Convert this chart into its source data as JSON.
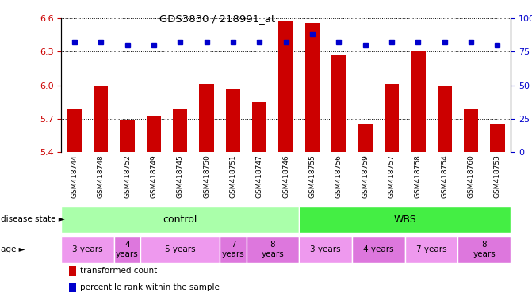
{
  "title": "GDS3830 / 218991_at",
  "samples": [
    "GSM418744",
    "GSM418748",
    "GSM418752",
    "GSM418749",
    "GSM418745",
    "GSM418750",
    "GSM418751",
    "GSM418747",
    "GSM418746",
    "GSM418755",
    "GSM418756",
    "GSM418759",
    "GSM418757",
    "GSM418758",
    "GSM418754",
    "GSM418760",
    "GSM418753"
  ],
  "transformed_counts": [
    5.78,
    6.0,
    5.69,
    5.73,
    5.78,
    6.01,
    5.96,
    5.85,
    6.58,
    6.56,
    6.27,
    5.65,
    6.01,
    6.3,
    6.0,
    5.78,
    5.65
  ],
  "percentile_ranks": [
    82,
    82,
    80,
    80,
    82,
    82,
    82,
    82,
    82,
    88,
    82,
    80,
    82,
    82,
    82,
    82,
    80
  ],
  "ylim_left": [
    5.4,
    6.6
  ],
  "ylim_right": [
    0,
    100
  ],
  "yticks_left": [
    5.4,
    5.7,
    6.0,
    6.3,
    6.6
  ],
  "yticks_right": [
    0,
    25,
    50,
    75,
    100
  ],
  "bar_color": "#cc0000",
  "dot_color": "#0000cc",
  "disease_state_control": {
    "start": 0,
    "end": 9,
    "label": "control",
    "color": "#aaffaa"
  },
  "disease_state_wbs": {
    "start": 9,
    "end": 17,
    "label": "WBS",
    "color": "#44ee44"
  },
  "age_groups": [
    {
      "label": "3 years",
      "start": 0,
      "end": 2,
      "color": "#ee99ee"
    },
    {
      "label": "4\nyears",
      "start": 2,
      "end": 3,
      "color": "#dd77dd"
    },
    {
      "label": "5 years",
      "start": 3,
      "end": 6,
      "color": "#ee99ee"
    },
    {
      "label": "7\nyears",
      "start": 6,
      "end": 7,
      "color": "#dd77dd"
    },
    {
      "label": "8\nyears",
      "start": 7,
      "end": 9,
      "color": "#dd77dd"
    },
    {
      "label": "3 years",
      "start": 9,
      "end": 11,
      "color": "#ee99ee"
    },
    {
      "label": "4 years",
      "start": 11,
      "end": 13,
      "color": "#dd77dd"
    },
    {
      "label": "7 years",
      "start": 13,
      "end": 15,
      "color": "#ee99ee"
    },
    {
      "label": "8\nyears",
      "start": 15,
      "end": 17,
      "color": "#dd77dd"
    }
  ],
  "legend_items": [
    {
      "color": "#cc0000",
      "label": "transformed count"
    },
    {
      "color": "#0000cc",
      "label": "percentile rank within the sample"
    }
  ],
  "xlab_bg": "#d8d8d8",
  "right_axis_label_100": "100%",
  "right_axis_labels": [
    "0",
    "25",
    "50",
    "75",
    "100%"
  ]
}
